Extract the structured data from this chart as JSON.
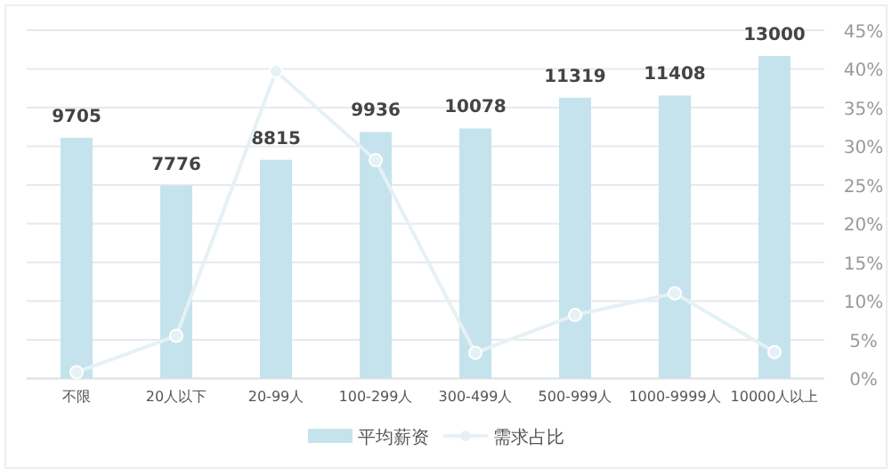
{
  "chart_data": {
    "type": "bar",
    "categories": [
      "不限",
      "20人以下",
      "20-99人",
      "100-299人",
      "300-499人",
      "500-999人",
      "1000-9999人",
      "10000人以上"
    ],
    "series": [
      {
        "name": "平均薪资",
        "color": "#c5e3ec",
        "values": [
          9705,
          7776,
          8815,
          9936,
          10078,
          11319,
          11408,
          13000
        ],
        "value_labels": [
          "9705",
          "7776",
          "8815",
          "9936",
          "10078",
          "11319",
          "11408",
          "13000"
        ]
      },
      {
        "name": "需求占比",
        "type": "line",
        "axis": "y2",
        "color": "#e6f1f5",
        "marker": "circle",
        "values": [
          0.8,
          5.5,
          39.7,
          28.2,
          3.3,
          8.2,
          11.0,
          3.4
        ]
      }
    ],
    "y2lim": [
      0,
      45
    ],
    "y2ticks": [
      {
        "value": 0,
        "label": "0%"
      },
      {
        "value": 5,
        "label": "5%"
      },
      {
        "value": 10,
        "label": "10%"
      },
      {
        "value": 15,
        "label": "15%"
      },
      {
        "value": 20,
        "label": "20%"
      },
      {
        "value": 25,
        "label": "25%"
      },
      {
        "value": 30,
        "label": "30%"
      },
      {
        "value": 35,
        "label": "35%"
      },
      {
        "value": 40,
        "label": "40%"
      },
      {
        "value": 45,
        "label": "45%"
      }
    ],
    "grid": "y",
    "legend": "bottom"
  }
}
